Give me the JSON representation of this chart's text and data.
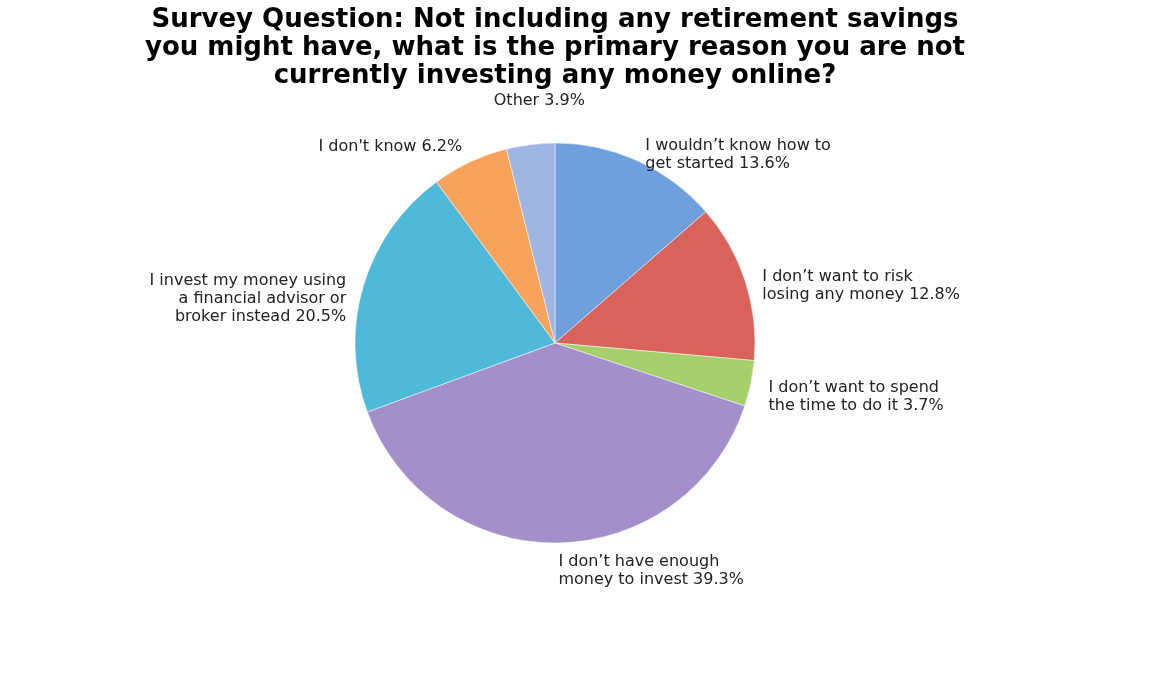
{
  "chart_data": {
    "type": "pie",
    "title": "Survey Question: Not including any retirement savings you might have, what is the primary reason you are not currently investing any money online?",
    "categories": [
      "I wouldn’t know how to get started",
      "I don’t want to risk losing any money",
      "I don’t want to spend the time to do it",
      "I don’t have enough money to invest",
      "I invest my money using a financial advisor or broker instead",
      "I don't know",
      "Other"
    ],
    "values": [
      13.6,
      12.8,
      3.7,
      39.3,
      20.5,
      6.2,
      3.9
    ],
    "value_labels": [
      "13.6%",
      "12.8%",
      "3.7%",
      "39.3%",
      "20.5%",
      "6.2%",
      "3.9%"
    ],
    "colors": [
      "#6f9fdc",
      "#d9625a",
      "#a5cf6a",
      "#a48fcb",
      "#4fb9d9",
      "#f7a35c",
      "#9fb6e2"
    ],
    "legend": false
  }
}
